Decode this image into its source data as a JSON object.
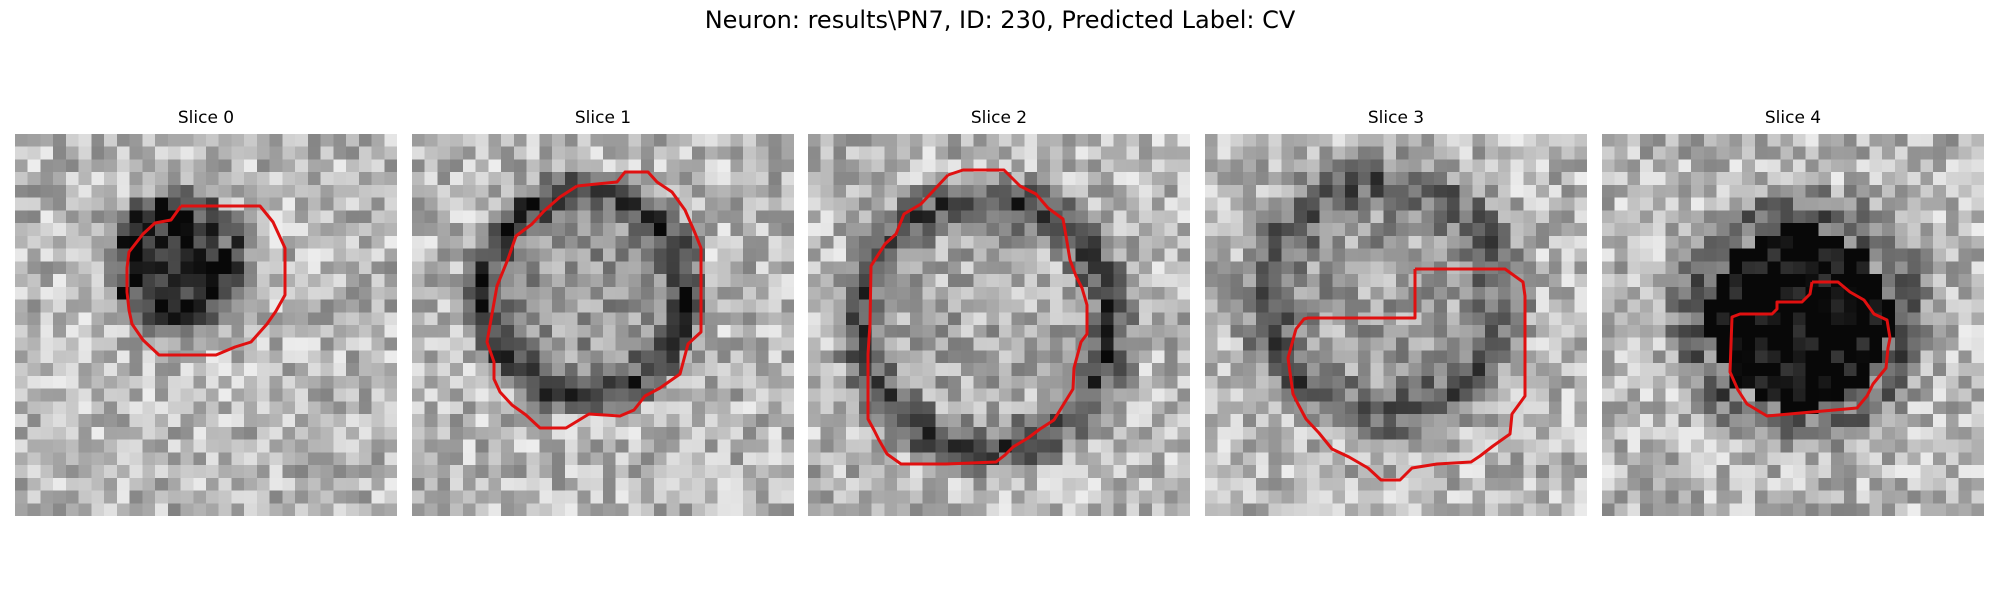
{
  "figure": {
    "title": "Neuron: results\\PN7, ID: 230, Predicted Label: CV",
    "contour_color": "#e01010"
  },
  "slices": [
    {
      "label": "Slice 0"
    },
    {
      "label": "Slice 1"
    },
    {
      "label": "Slice 2"
    },
    {
      "label": "Slice 3"
    },
    {
      "label": "Slice 4"
    }
  ]
}
